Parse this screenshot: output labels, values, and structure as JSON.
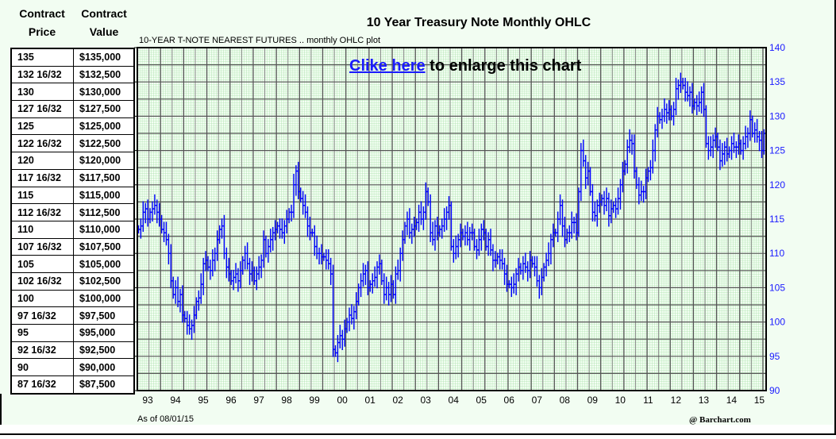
{
  "table": {
    "headers": [
      [
        "Contract",
        "Price"
      ],
      [
        "Contract",
        "Value"
      ]
    ],
    "rows": [
      [
        "135",
        "$135,000"
      ],
      [
        "132 16/32",
        "$132,500"
      ],
      [
        "130",
        "$130,000"
      ],
      [
        "127 16/32",
        "$127,500"
      ],
      [
        "125",
        "$125,000"
      ],
      [
        "122 16/32",
        "$122,500"
      ],
      [
        "120",
        "$120,000"
      ],
      [
        "117 16/32",
        "$117,500"
      ],
      [
        "115",
        "$115,000"
      ],
      [
        "112 16/32",
        "$112,500"
      ],
      [
        "110",
        "$110,000"
      ],
      [
        "107 16/32",
        "$107,500"
      ],
      [
        "105",
        "$105,000"
      ],
      [
        "102 16/32",
        "$102,500"
      ],
      [
        "100",
        "$100,000"
      ],
      [
        "97 16/32",
        "$97,500"
      ],
      [
        "95",
        "$95,000"
      ],
      [
        "92 16/32",
        "$92,500"
      ],
      [
        "90",
        "$90,000"
      ],
      [
        "87 16/32",
        "$87,500"
      ]
    ]
  },
  "link": {
    "text": "Clike here",
    "rest": " to enlarge this chart"
  },
  "footer": {
    "as_of": "As of 08/01/15",
    "credit": "@ Barchart.com"
  },
  "chart_data": {
    "type": "ohlc",
    "title": "10 Year Treasury Note Monthly OHLC",
    "subtitle": "10-YEAR T-NOTE NEAREST FUTURES .. monthly OHLC plot",
    "ylim": [
      90,
      140
    ],
    "yticks": [
      90,
      95,
      100,
      105,
      110,
      115,
      120,
      125,
      130,
      135,
      140
    ],
    "xtick_labels": [
      "93",
      "94",
      "95",
      "96",
      "97",
      "98",
      "99",
      "00",
      "01",
      "02",
      "03",
      "04",
      "05",
      "06",
      "07",
      "08",
      "09",
      "10",
      "11",
      "12",
      "13",
      "14",
      "15"
    ],
    "grid": true,
    "series_color": "#0000ff",
    "start_month": "1993-01",
    "monthly_close": [
      113.5,
      114,
      116,
      116.5,
      115,
      116,
      116.5,
      117,
      116,
      115,
      113.5,
      113,
      112,
      110,
      106,
      104,
      105,
      103,
      104,
      101,
      100.5,
      99.5,
      99,
      99.5,
      101,
      103,
      103.5,
      105.5,
      108.5,
      109,
      108,
      107.5,
      109,
      110,
      112,
      113.5,
      114,
      110,
      108,
      107,
      106,
      106.5,
      107,
      106,
      107.5,
      109,
      110,
      108.5,
      107,
      107.5,
      106,
      107,
      108,
      109,
      112,
      110,
      111,
      112,
      113,
      113.5,
      114,
      113.5,
      113,
      114,
      115,
      116,
      116,
      120,
      122,
      119,
      118,
      117,
      116,
      114,
      113,
      113,
      111,
      110,
      110,
      109.5,
      109.5,
      109,
      108.5,
      107,
      96,
      95.5,
      97,
      98,
      97.5,
      99,
      100,
      101,
      100.5,
      101.5,
      103,
      105,
      106,
      107,
      107.5,
      105,
      105.5,
      106,
      106.5,
      108,
      108.5,
      106,
      104,
      105,
      104,
      105.5,
      104,
      107,
      107.5,
      110,
      112,
      114,
      115,
      113,
      113.5,
      114,
      114.5,
      116,
      115,
      116,
      119,
      117.5,
      113,
      112,
      114,
      113,
      113.5,
      114,
      115,
      116,
      117,
      111,
      110,
      111,
      112,
      113,
      112.5,
      113,
      112,
      113,
      113,
      111,
      110.5,
      112,
      113.5,
      113,
      111,
      112,
      110.5,
      109,
      109,
      109.5,
      109,
      108.5,
      107,
      105.5,
      105.5,
      105,
      105.5,
      107,
      108,
      107.5,
      108.5,
      108,
      107.5,
      109,
      108.5,
      108,
      106,
      105,
      106.5,
      108,
      109,
      110,
      112,
      113,
      113,
      115,
      117,
      114,
      112,
      113,
      113,
      114.5,
      114.5,
      113,
      119,
      125,
      123.5,
      121,
      122,
      119,
      116,
      115.5,
      117,
      117.5,
      118,
      117,
      118,
      115.5,
      116.5,
      117,
      116.5,
      118,
      120,
      122,
      123,
      125.5,
      126.5,
      126,
      122,
      120,
      118.5,
      119,
      119,
      121,
      122,
      122.5,
      125,
      128,
      130,
      129.5,
      130,
      131,
      130.5,
      131,
      130,
      131,
      134,
      134.5,
      135,
      134.5,
      133.5,
      133,
      133.5,
      131.5,
      132,
      131.5,
      132,
      133.5,
      131,
      126,
      125,
      125.5,
      126.5,
      127,
      125.5,
      123.5,
      124.5,
      125.5,
      124.5,
      125,
      126,
      125.5,
      125.5,
      126,
      125,
      126,
      127,
      127.5,
      129.5,
      127.5,
      128,
      127,
      126.5,
      125,
      127.5
    ]
  }
}
